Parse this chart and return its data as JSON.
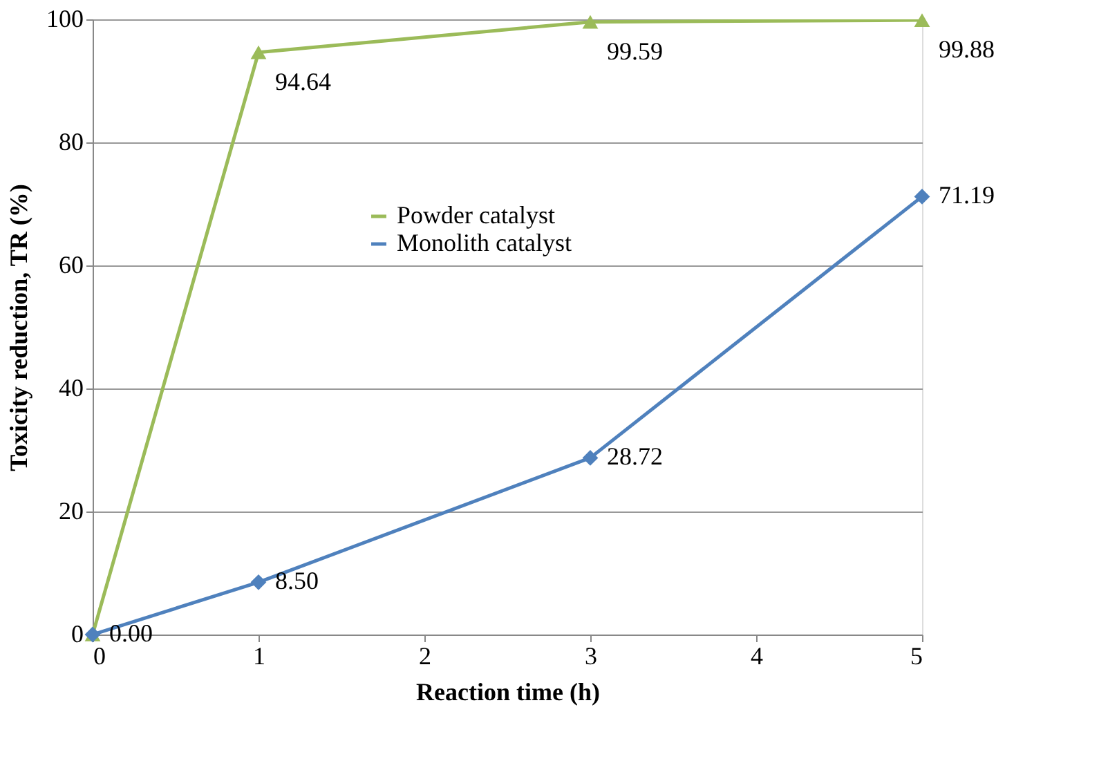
{
  "chart_data": {
    "type": "line",
    "xlabel": "Reaction time (h)",
    "ylabel": "Toxicity reduction, TR (%)",
    "x": [
      0,
      1,
      3,
      5
    ],
    "xlim": [
      0,
      5
    ],
    "xticks": [
      0,
      1,
      2,
      3,
      4,
      5
    ],
    "ylim": [
      0,
      100
    ],
    "yticks": [
      0,
      20,
      40,
      60,
      80,
      100
    ],
    "grid": "y",
    "legend": "center",
    "series": [
      {
        "name": "Powder catalyst",
        "color": "#9bbb59",
        "marker": "triangle",
        "values": [
          0,
          94.64,
          99.59,
          99.88
        ],
        "value_labels": [
          null,
          "94.64",
          "99.59",
          "99.88"
        ]
      },
      {
        "name": "Monolith catalyst",
        "color": "#4f81bd",
        "marker": "diamond",
        "values": [
          0,
          8.5,
          28.72,
          71.19
        ],
        "value_labels": [
          "0.00",
          "8.50",
          "28.72",
          "71.19"
        ]
      }
    ]
  }
}
